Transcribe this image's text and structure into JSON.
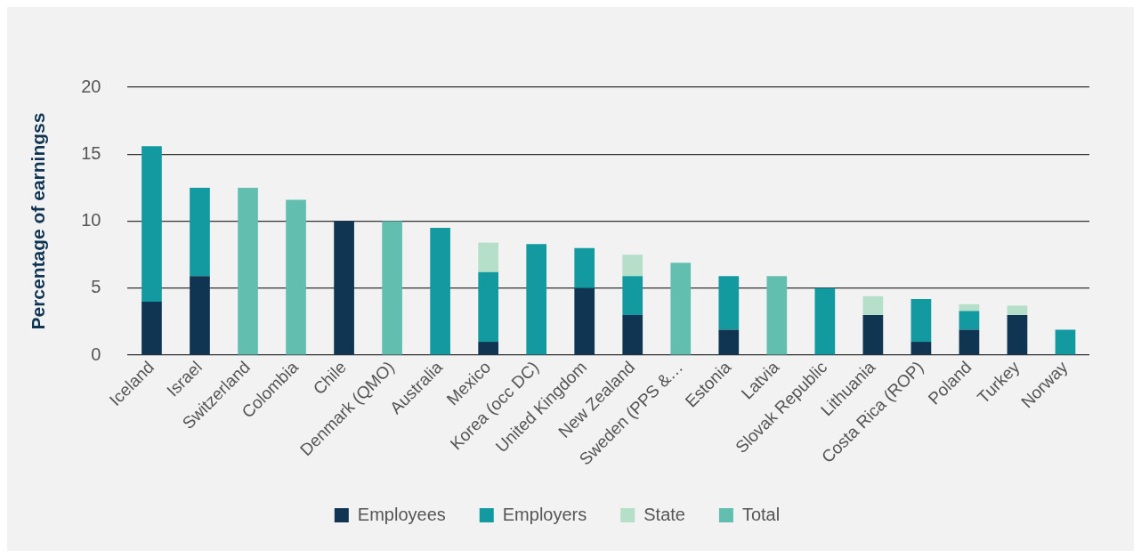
{
  "chart_data": {
    "type": "bar",
    "stacked": true,
    "ylabel": "Percentage of earningss",
    "categories": [
      "Iceland",
      "Israel",
      "Switzerland",
      "Colombia",
      "Chile",
      "Denmark (QMO)",
      "Australia",
      "Mexico",
      "Korea (occ DC)",
      "United Kingdom",
      "New Zealand",
      "Sweden (PPS &…",
      "Estonia",
      "Latvia",
      "Slovak Republic",
      "Lithuania",
      "Costa Rica (ROP)",
      "Poland",
      "Turkey",
      "Norway"
    ],
    "series": [
      {
        "name": "Employees",
        "color": "#0f3552",
        "values": [
          4,
          5.9,
          null,
          null,
          10,
          null,
          null,
          1,
          null,
          5,
          3,
          null,
          1.9,
          null,
          null,
          3,
          1,
          1.9,
          3,
          null
        ]
      },
      {
        "name": "Employers",
        "color": "#139aa0",
        "values": [
          11.6,
          6.6,
          null,
          null,
          null,
          null,
          9.5,
          5.2,
          8.3,
          3,
          2.9,
          null,
          4,
          null,
          5,
          null,
          3.2,
          1.4,
          null,
          1.9
        ]
      },
      {
        "name": "State",
        "color": "#b5dfc8",
        "values": [
          null,
          null,
          null,
          null,
          null,
          null,
          null,
          2.2,
          null,
          null,
          1.6,
          null,
          null,
          null,
          null,
          1.4,
          null,
          0.5,
          0.7,
          null
        ]
      },
      {
        "name": "Total",
        "color": "#62bfb0",
        "values": [
          null,
          null,
          12.5,
          11.6,
          null,
          10,
          null,
          null,
          null,
          null,
          null,
          6.9,
          null,
          5.9,
          null,
          null,
          null,
          null,
          null,
          null
        ]
      }
    ],
    "ylim": [
      0,
      20
    ],
    "yticks": [
      0,
      5,
      10,
      15,
      20
    ],
    "grid": "y",
    "legend": "bottom"
  }
}
